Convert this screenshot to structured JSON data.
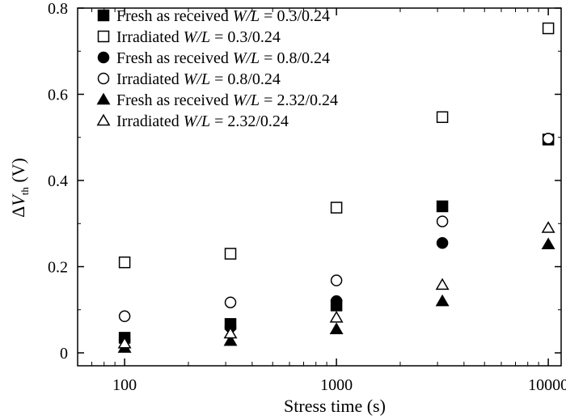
{
  "chart_data": {
    "type": "scatter",
    "xscale": "log",
    "xlim": [
      60,
      11500
    ],
    "ylim": [
      -0.03,
      0.8
    ],
    "x_ticks": [
      100,
      1000,
      10000
    ],
    "x_tick_labels": [
      "100",
      "1000",
      "10000"
    ],
    "y_ticks": [
      0,
      0.2,
      0.4,
      0.6,
      0.8
    ],
    "y_tick_labels": [
      "0",
      "0.2",
      "0.4",
      "0.6",
      "0.8"
    ],
    "xlabel": "Stress time (s)",
    "ylabel": {
      "delta": "Δ",
      "v": "V",
      "sub": "th",
      "unit": " (V)"
    },
    "grid": false,
    "legend_position": "top-left",
    "series": [
      {
        "name": {
          "prefix": "Fresh as received ",
          "wl": "W/L",
          "value": " = 0.3/0.24"
        },
        "marker": "square",
        "fill": "filled",
        "x": [
          100,
          316,
          1000,
          3162,
          10000
        ],
        "y": [
          0.035,
          0.067,
          0.11,
          0.34,
          0.495
        ]
      },
      {
        "name": {
          "prefix": "Irradiated ",
          "wl": "W/L",
          "value": " = 0.3/0.24"
        },
        "marker": "square",
        "fill": "open",
        "x": [
          100,
          316,
          1000,
          3162,
          10000
        ],
        "y": [
          0.21,
          0.23,
          0.337,
          0.547,
          0.753
        ]
      },
      {
        "name": {
          "prefix": "Fresh as received ",
          "wl": "W/L",
          "value": " = 0.8/0.24"
        },
        "marker": "circle",
        "fill": "filled",
        "x": [
          100,
          316,
          1000,
          3162,
          10000
        ],
        "y": [
          0.03,
          0.06,
          0.12,
          0.255,
          0.497
        ]
      },
      {
        "name": {
          "prefix": "Irradiated ",
          "wl": "W/L",
          "value": " = 0.8/0.24"
        },
        "marker": "circle",
        "fill": "open",
        "x": [
          100,
          316,
          1000,
          3162,
          10000
        ],
        "y": [
          0.085,
          0.117,
          0.168,
          0.305,
          0.497
        ]
      },
      {
        "name": {
          "prefix": "Fresh as received ",
          "wl": "W/L",
          "value": " = 2.32/0.24"
        },
        "marker": "triangle",
        "fill": "filled",
        "x": [
          100,
          316,
          1000,
          3162,
          10000
        ],
        "y": [
          0.012,
          0.028,
          0.055,
          0.12,
          0.252
        ]
      },
      {
        "name": {
          "prefix": "Irradiated ",
          "wl": "W/L",
          "value": " = 2.32/0.24"
        },
        "marker": "triangle",
        "fill": "open",
        "x": [
          100,
          316,
          1000,
          3162,
          10000
        ],
        "y": [
          0.022,
          0.045,
          0.082,
          0.158,
          0.29
        ]
      }
    ]
  }
}
